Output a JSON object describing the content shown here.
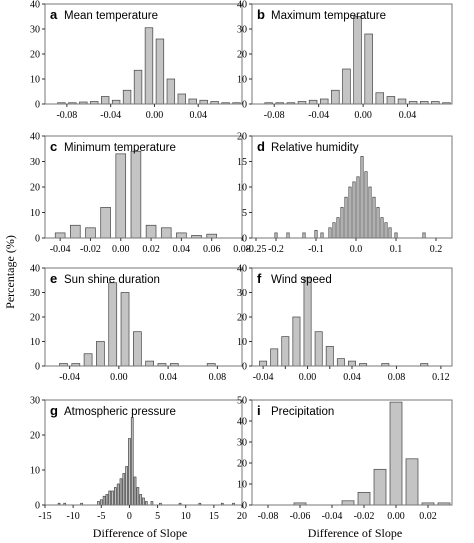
{
  "figure": {
    "ylabel": "Percentage (%)",
    "xlabel_left": "Difference of Slope",
    "xlabel_right": "Difference of Slope"
  },
  "chart_data": [
    {
      "id": "a",
      "letter": "a",
      "title": "Mean temperature",
      "type": "bar",
      "xlim": [
        -0.1,
        0.08
      ],
      "ylim": [
        0,
        40
      ],
      "xticks": [
        -0.08,
        -0.04,
        0.0,
        0.04
      ],
      "xtick_labels": [
        "-0.08",
        "-0.04",
        "0.00",
        "0.04"
      ],
      "yticks": [
        0,
        10,
        20,
        30,
        40
      ],
      "ytick_labels": [
        "0",
        "10",
        "20",
        "30",
        "40"
      ],
      "bin_width": 0.007,
      "x": [
        -0.085,
        -0.075,
        -0.065,
        -0.055,
        -0.045,
        -0.035,
        -0.025,
        -0.015,
        -0.005,
        0.005,
        0.015,
        0.025,
        0.035,
        0.045,
        0.055,
        0.065,
        0.075
      ],
      "values": [
        0.5,
        0.5,
        0.8,
        1.0,
        3.0,
        1.5,
        5.5,
        13.5,
        30.5,
        26.0,
        10.0,
        4.0,
        2.0,
        1.5,
        1.0,
        0.5,
        0.5
      ]
    },
    {
      "id": "b",
      "letter": "b",
      "title": "Maximum temperature",
      "type": "bar",
      "xlim": [
        -0.1,
        0.08
      ],
      "ylim": [
        0,
        40
      ],
      "xticks": [
        -0.08,
        -0.04,
        0.0,
        0.04
      ],
      "xtick_labels": [
        "-0.08",
        "-0.04",
        "0.00",
        "0.04"
      ],
      "yticks": [
        0,
        10,
        20,
        30,
        40
      ],
      "ytick_labels": [
        "0",
        "10",
        "20",
        "30",
        "40"
      ],
      "bin_width": 0.007,
      "x": [
        -0.085,
        -0.075,
        -0.065,
        -0.055,
        -0.045,
        -0.035,
        -0.025,
        -0.015,
        -0.005,
        0.005,
        0.015,
        0.025,
        0.035,
        0.045,
        0.055,
        0.065,
        0.075
      ],
      "values": [
        0.5,
        0.5,
        0.5,
        1.0,
        1.5,
        2.0,
        5.5,
        14.0,
        35.0,
        28.0,
        4.5,
        3.0,
        2.0,
        1.0,
        1.0,
        1.0,
        0.5
      ]
    },
    {
      "id": "c",
      "letter": "c",
      "title": "Minimum temperature",
      "type": "bar",
      "xlim": [
        -0.05,
        0.08
      ],
      "ylim": [
        0,
        40
      ],
      "xticks": [
        -0.04,
        -0.02,
        0.0,
        0.02,
        0.04,
        0.06,
        0.08
      ],
      "xtick_labels": [
        "-0.04",
        "-0.02",
        "0.00",
        "0.02",
        "0.04",
        "0.06",
        "0.08"
      ],
      "yticks": [
        0,
        10,
        20,
        30,
        40
      ],
      "ytick_labels": [
        "0",
        "10",
        "20",
        "30",
        "40"
      ],
      "bin_width": 0.0065,
      "x": [
        -0.04,
        -0.03,
        -0.02,
        -0.01,
        0.0,
        0.01,
        0.02,
        0.03,
        0.04,
        0.05,
        0.06
      ],
      "values": [
        2.0,
        5.0,
        4.0,
        12.0,
        33.0,
        34.0,
        5.0,
        4.0,
        2.0,
        1.0,
        1.5
      ]
    },
    {
      "id": "d",
      "letter": "d",
      "title": "Relative humidity",
      "type": "bar",
      "xlim": [
        -0.26,
        0.24
      ],
      "ylim": [
        0,
        20
      ],
      "xticks": [
        -0.2,
        -0.1,
        0.0,
        0.1,
        0.2
      ],
      "xtick_labels": [
        "-0.2",
        "-0.1",
        "0.0",
        "0.1",
        "0.2"
      ],
      "extra_ticks": [
        -0.25
      ],
      "extra_tick_labels": [
        "-0.25"
      ],
      "yticks": [
        0,
        5,
        10,
        15,
        20
      ],
      "ytick_labels": [
        "0",
        "5",
        "10",
        "15",
        "20"
      ],
      "bin_width": 0.006,
      "x": [
        -0.2,
        -0.17,
        -0.13,
        -0.1,
        -0.085,
        -0.065,
        -0.055,
        -0.045,
        -0.035,
        -0.025,
        -0.015,
        -0.005,
        0.005,
        0.015,
        0.025,
        0.035,
        0.045,
        0.055,
        0.065,
        0.075,
        0.085,
        0.1,
        0.17
      ],
      "values": [
        1.0,
        1.0,
        1.0,
        1.5,
        1.0,
        2.0,
        3.0,
        4.0,
        6.0,
        8.0,
        10.0,
        11.0,
        12.0,
        16.0,
        13.0,
        10.0,
        8.0,
        6.0,
        4.0,
        3.0,
        2.0,
        1.0,
        1.0
      ]
    },
    {
      "id": "e",
      "letter": "e",
      "title": "Sun shine duration",
      "type": "bar",
      "xlim": [
        -0.06,
        0.1
      ],
      "ylim": [
        0,
        40
      ],
      "xticks": [
        -0.04,
        0.0,
        0.04,
        0.08
      ],
      "xtick_labels": [
        "-0.04",
        "0.00",
        "0.04",
        "0.08"
      ],
      "yticks": [
        0,
        10,
        20,
        30,
        40
      ],
      "ytick_labels": [
        "0",
        "10",
        "20",
        "30",
        "40"
      ],
      "bin_width": 0.0065,
      "x": [
        -0.045,
        -0.035,
        -0.025,
        -0.015,
        -0.005,
        0.005,
        0.015,
        0.025,
        0.035,
        0.045,
        0.075
      ],
      "values": [
        1.0,
        1.0,
        5.0,
        10.0,
        34.0,
        30.0,
        14.0,
        2.0,
        1.0,
        1.0,
        1.0
      ]
    },
    {
      "id": "f",
      "letter": "f",
      "title": "Wind speed",
      "type": "bar",
      "xlim": [
        -0.05,
        0.13
      ],
      "ylim": [
        0,
        40
      ],
      "xticks": [
        -0.04,
        0.0,
        0.04,
        0.08,
        0.12
      ],
      "xtick_labels": [
        "-0.04",
        "0.00",
        "0.04",
        "0.08",
        "0.12"
      ],
      "extra_ticks": [
        -0.02,
        0.02
      ],
      "extra_tick_labels": [
        "",
        ""
      ],
      "yticks": [
        0,
        10,
        20,
        30,
        40
      ],
      "ytick_labels": [
        "0",
        "10",
        "20",
        "30",
        "40"
      ],
      "bin_width": 0.0065,
      "x": [
        -0.04,
        -0.03,
        -0.02,
        -0.01,
        0.0,
        0.01,
        0.02,
        0.03,
        0.04,
        0.05,
        0.07,
        0.105
      ],
      "values": [
        2.0,
        7.0,
        12.0,
        20.0,
        36.0,
        14.0,
        8.0,
        3.0,
        2.0,
        1.0,
        1.0,
        1.0
      ]
    },
    {
      "id": "g",
      "letter": "g",
      "title": "Atmospheric pressure",
      "type": "bar",
      "xlim": [
        -15,
        20
      ],
      "ylim": [
        0,
        30
      ],
      "xticks": [
        -15,
        -10,
        -5,
        0,
        5,
        10,
        15,
        20
      ],
      "xtick_labels": [
        "-15",
        "-10",
        "-5",
        "0",
        "5",
        "10",
        "15",
        "20"
      ],
      "yticks": [
        0,
        10,
        20,
        30
      ],
      "ytick_labels": [
        "0",
        "10",
        "20",
        "30"
      ],
      "bin_width": 0.35,
      "x": [
        -12.5,
        -11.5,
        -8.5,
        -5.5,
        -5.0,
        -4.5,
        -4.0,
        -3.5,
        -3.0,
        -2.5,
        -2.0,
        -1.5,
        -1.0,
        -0.5,
        0.0,
        0.5,
        1.0,
        1.5,
        2.0,
        2.5,
        3.0,
        4.0,
        5.5,
        9.0,
        12.5,
        16.5,
        18.5
      ],
      "values": [
        0.5,
        0.5,
        0.5,
        1.0,
        1.5,
        2.5,
        3.0,
        4.0,
        4.0,
        5.0,
        6.0,
        7.5,
        9.0,
        11.0,
        19.0,
        25.0,
        8.0,
        5.0,
        3.0,
        2.0,
        1.0,
        1.0,
        0.5,
        0.5,
        0.5,
        0.5,
        0.5
      ]
    },
    {
      "id": "i",
      "letter": "i",
      "title": "Precipitation",
      "type": "bar",
      "xlim": [
        -0.09,
        0.035
      ],
      "ylim": [
        0,
        50
      ],
      "xticks": [
        -0.08,
        -0.06,
        -0.04,
        -0.02,
        0.0,
        0.02
      ],
      "xtick_labels": [
        "-0.08",
        "-0.06",
        "-0.04",
        "-0.02",
        "0.00",
        "0.02"
      ],
      "yticks": [
        0,
        10,
        20,
        30,
        40,
        50
      ],
      "ytick_labels": [
        "0",
        "10",
        "20",
        "30",
        "40",
        "50"
      ],
      "bin_width": 0.0075,
      "x": [
        -0.06,
        -0.03,
        -0.02,
        -0.01,
        0.0,
        0.01,
        0.02,
        0.03
      ],
      "values": [
        1.0,
        2.0,
        6.0,
        17.0,
        49.0,
        22.0,
        1.0,
        1.0
      ]
    }
  ]
}
